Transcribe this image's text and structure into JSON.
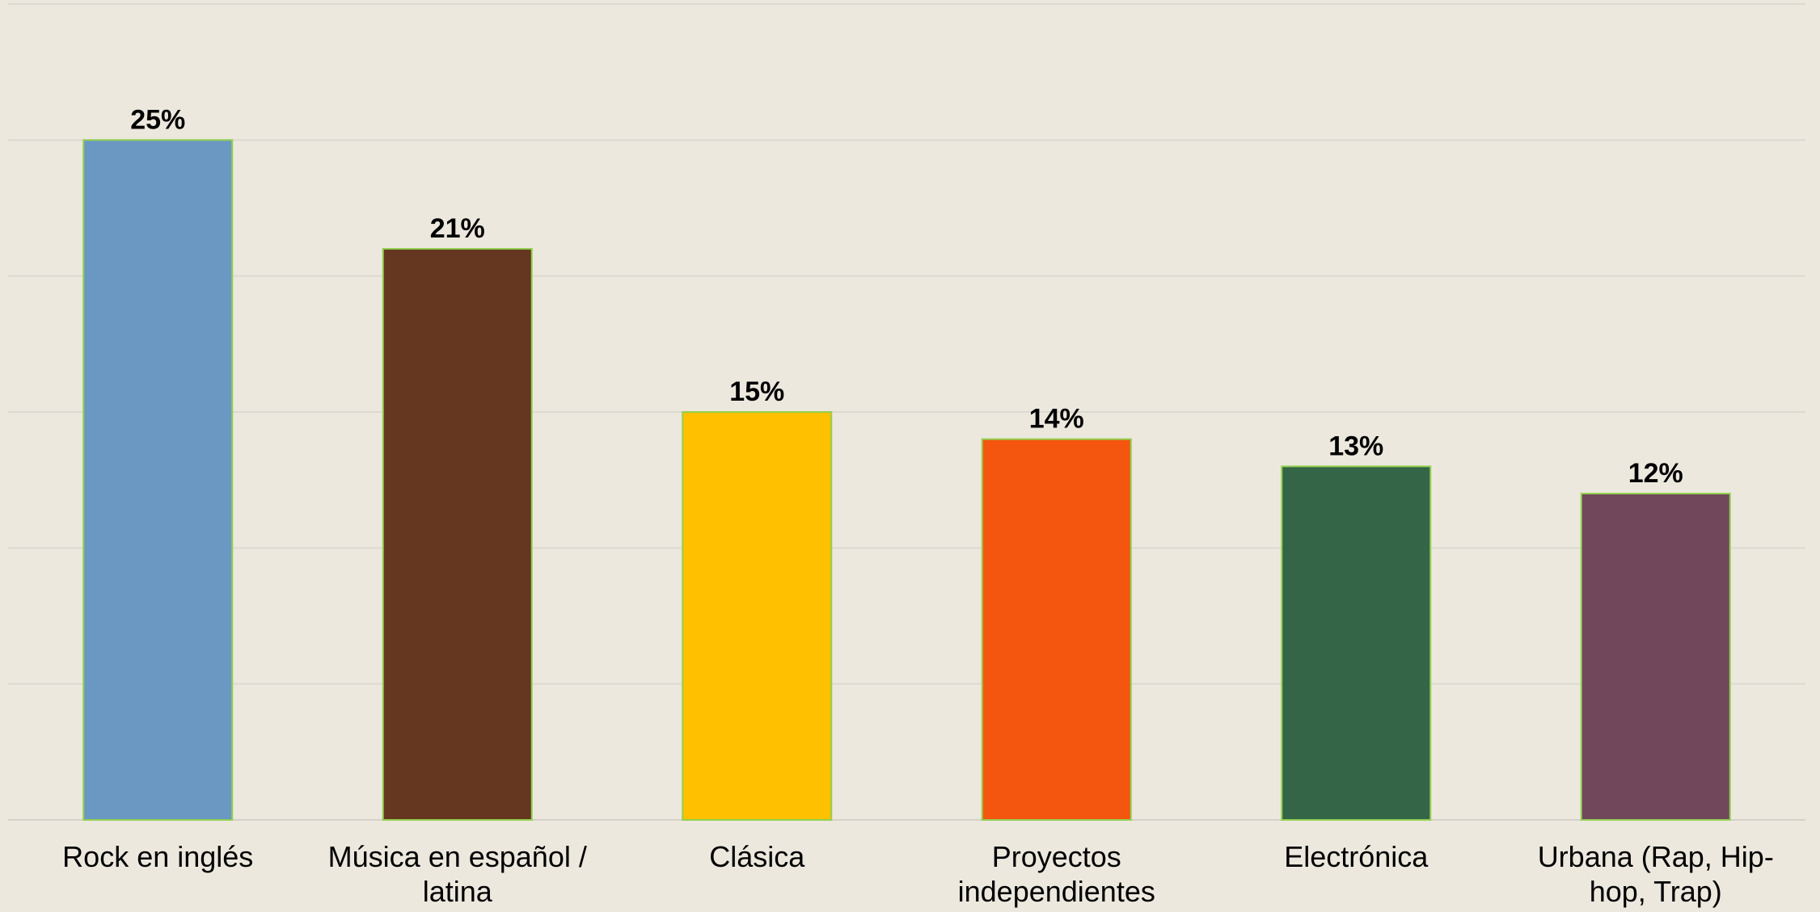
{
  "chart_data": {
    "type": "bar",
    "categories": [
      [
        "Rock en inglés"
      ],
      [
        "Música en español /",
        "latina"
      ],
      [
        "Clásica"
      ],
      [
        "Proyectos",
        "independientes"
      ],
      [
        "Electrónica"
      ],
      [
        "Urbana (Rap, Hip-",
        "hop, Trap)"
      ]
    ],
    "values": [
      25,
      21,
      15,
      14,
      13,
      12
    ],
    "value_labels": [
      "25%",
      "21%",
      "15%",
      "14%",
      "13%",
      "12%"
    ],
    "colors": [
      "#6A98C3",
      "#653620",
      "#FFC000",
      "#F4560F",
      "#356547",
      "#71475C"
    ],
    "ylim": [
      0,
      30
    ],
    "grid": true,
    "legend": "none",
    "title": "",
    "xlabel": "",
    "ylabel": ""
  }
}
